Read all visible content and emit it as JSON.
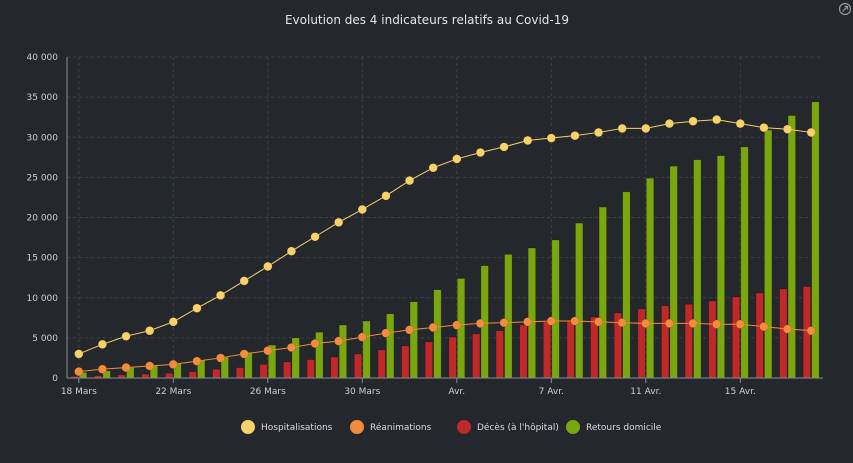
{
  "chart_data": {
    "type": "bar",
    "title": "Evolution des 4 indicateurs relatifs au Covid-19",
    "ylim": [
      0,
      40000
    ],
    "y_ticks": [
      "0",
      "5 000",
      "10 000",
      "15 000",
      "20 000",
      "25 000",
      "30 000",
      "35 000",
      "40 000"
    ],
    "y_tick_values": [
      0,
      5000,
      10000,
      15000,
      20000,
      25000,
      30000,
      35000,
      40000
    ],
    "x_ticks": [
      {
        "index": 0,
        "label": "18 Mars"
      },
      {
        "index": 4,
        "label": "22 Mars"
      },
      {
        "index": 8,
        "label": "26 Mars"
      },
      {
        "index": 12,
        "label": "30 Mars"
      },
      {
        "index": 16,
        "label": "Avr."
      },
      {
        "index": 20,
        "label": "7 Avr."
      },
      {
        "index": 24,
        "label": "11 Avr."
      },
      {
        "index": 28,
        "label": "15 Avr."
      }
    ],
    "categories": [
      "18/03",
      "19/03",
      "20/03",
      "21/03",
      "22/03",
      "23/03",
      "24/03",
      "25/03",
      "26/03",
      "27/03",
      "28/03",
      "29/03",
      "30/03",
      "31/03",
      "01/04",
      "02/04",
      "03/04",
      "04/04",
      "05/04",
      "06/04",
      "07/04",
      "08/04",
      "09/04",
      "10/04",
      "11/04",
      "12/04",
      "13/04",
      "14/04",
      "15/04",
      "16/04",
      "17/04",
      "18/04"
    ],
    "grid": true,
    "legend_position": "bottom",
    "series": [
      {
        "name": "Hospitalisations",
        "kind": "line",
        "color": "#f7d16a",
        "values": [
          3000,
          4200,
          5200,
          5900,
          7000,
          8700,
          10300,
          12100,
          13900,
          15800,
          17600,
          19400,
          21000,
          22700,
          24600,
          26200,
          27300,
          28100,
          28800,
          29600,
          29900,
          30200,
          30600,
          31100,
          31100,
          31700,
          32000,
          32200,
          31700,
          31200,
          31000,
          30600
        ]
      },
      {
        "name": "Réanimations",
        "kind": "line",
        "color": "#f08c3c",
        "values": [
          800,
          1100,
          1300,
          1500,
          1700,
          2100,
          2500,
          3000,
          3400,
          3800,
          4300,
          4600,
          5100,
          5600,
          6000,
          6300,
          6600,
          6800,
          6900,
          7000,
          7100,
          7100,
          7000,
          6900,
          6800,
          6800,
          6800,
          6700,
          6700,
          6400,
          6100,
          5900
        ]
      },
      {
        "name": "Décès (à l'hôpital)",
        "kind": "bar",
        "color": "#c0282a",
        "values": [
          200,
          300,
          400,
          500,
          600,
          800,
          1100,
          1300,
          1700,
          2000,
          2300,
          2600,
          3000,
          3500,
          4000,
          4500,
          5100,
          5500,
          5900,
          6600,
          7000,
          7200,
          7600,
          8100,
          8600,
          9000,
          9200,
          9600,
          10100,
          10600,
          11100,
          11400
        ]
      },
      {
        "name": "Retours domicile",
        "kind": "bar",
        "color": "#7aa70e",
        "values": [
          700,
          900,
          1300,
          1500,
          1900,
          2200,
          2600,
          3200,
          4100,
          5000,
          5700,
          6600,
          7100,
          8000,
          9500,
          11000,
          12400,
          14000,
          15400,
          16200,
          17200,
          19300,
          21300,
          23200,
          24900,
          26400,
          27200,
          27700,
          28800,
          30900,
          32700,
          34400
        ]
      }
    ]
  }
}
